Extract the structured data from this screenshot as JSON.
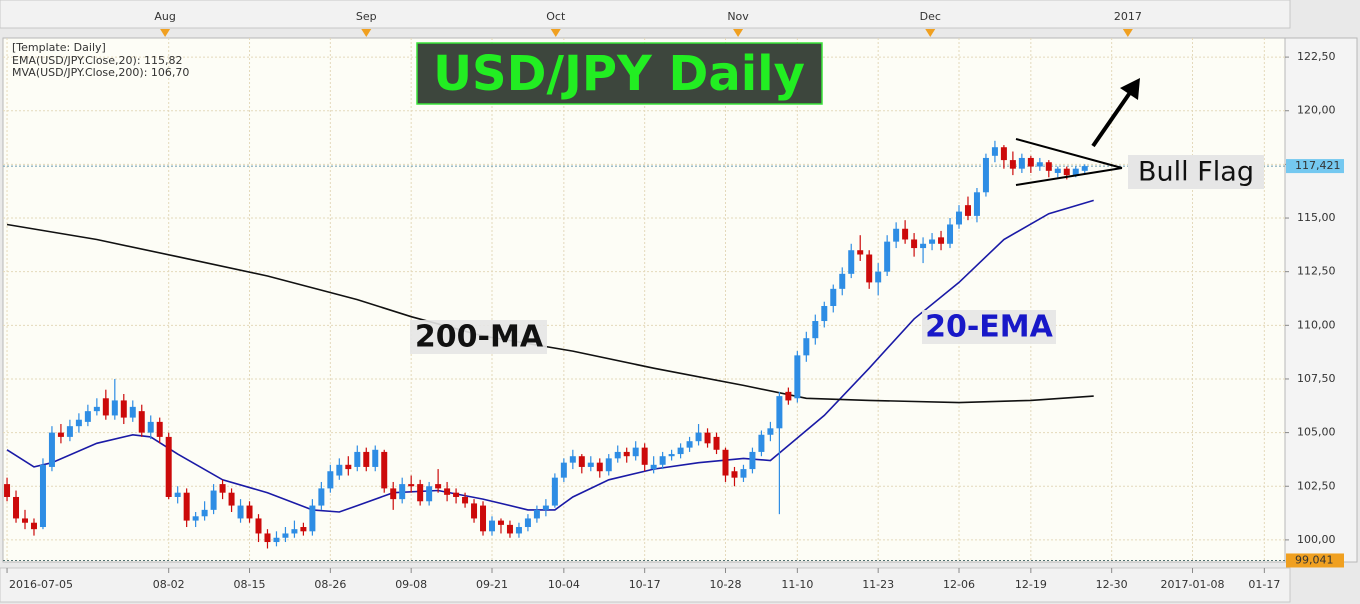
{
  "chart_data": {
    "type": "candlestick",
    "legend_title": "[Template: Daily]",
    "annotations": [
      "USD/JPY Daily",
      "200-MA",
      "20-EMA",
      "Bull Flag"
    ],
    "up_color": "#2e8de4",
    "down_color": "#cc0a0a",
    "ylim": [
      98.97,
      123.39
    ],
    "yticks": [
      {
        "value": 100,
        "label": "100,00"
      },
      {
        "value": 102.5,
        "label": "102,50"
      },
      {
        "value": 105,
        "label": "105,00"
      },
      {
        "value": 107.5,
        "label": "107,50"
      },
      {
        "value": 110,
        "label": "110,00"
      },
      {
        "value": 112.5,
        "label": "112,50"
      },
      {
        "value": 115,
        "label": "115,00"
      },
      {
        "value": 117.5,
        "label": "117,50"
      },
      {
        "value": 120,
        "label": "120,00"
      },
      {
        "value": 122.5,
        "label": "122,50"
      }
    ],
    "xlim": [
      -0.45,
      142.3
    ],
    "xticks": [
      {
        "value": 0,
        "label": "2016-07-05"
      },
      {
        "value": 18,
        "label": "08-02"
      },
      {
        "value": 27,
        "label": "08-15"
      },
      {
        "value": 36,
        "label": "08-26"
      },
      {
        "value": 45,
        "label": "09-08"
      },
      {
        "value": 54,
        "label": "09-21"
      },
      {
        "value": 62,
        "label": "10-04"
      },
      {
        "value": 71,
        "label": "10-17"
      },
      {
        "value": 80,
        "label": "10-28"
      },
      {
        "value": 88,
        "label": "11-10"
      },
      {
        "value": 97,
        "label": "11-23"
      },
      {
        "value": 106,
        "label": "12-06"
      },
      {
        "value": 114,
        "label": "12-19"
      },
      {
        "value": 123,
        "label": "12-30"
      },
      {
        "value": 132,
        "label": "2017-01-08"
      },
      {
        "value": 140,
        "label": "01-17"
      }
    ],
    "top_ticks": [
      {
        "value": 17.6,
        "label": "Aug"
      },
      {
        "value": 40,
        "label": "Sep"
      },
      {
        "value": 61.1,
        "label": "Oct"
      },
      {
        "value": 81.4,
        "label": "Nov"
      },
      {
        "value": 102.8,
        "label": "Dec"
      },
      {
        "value": 124.8,
        "label": "2017"
      }
    ],
    "grid": true,
    "last_price": {
      "value": 117.421,
      "label": "117,421",
      "color": "#74c8f0"
    },
    "low_price": {
      "value": 99.041,
      "label": "99,041",
      "color": "#f0a020"
    },
    "candles": [
      [
        102.6,
        102.9,
        101.8,
        102.0
      ],
      [
        102.0,
        102.3,
        100.8,
        101.0
      ],
      [
        101.0,
        101.4,
        100.5,
        100.8
      ],
      [
        100.8,
        101.0,
        100.2,
        100.5
      ],
      [
        100.6,
        103.8,
        100.5,
        103.5
      ],
      [
        103.4,
        105.3,
        103.2,
        105.0
      ],
      [
        105.0,
        105.4,
        104.5,
        104.8
      ],
      [
        104.8,
        105.6,
        104.6,
        105.3
      ],
      [
        105.3,
        105.9,
        105.0,
        105.6
      ],
      [
        105.5,
        106.3,
        105.3,
        106.0
      ],
      [
        106.0,
        106.6,
        105.8,
        106.2
      ],
      [
        106.6,
        107.0,
        105.6,
        105.8
      ],
      [
        105.8,
        107.5,
        105.6,
        106.5
      ],
      [
        106.5,
        106.8,
        105.4,
        105.7
      ],
      [
        105.7,
        106.5,
        105.5,
        106.2
      ],
      [
        106.0,
        106.3,
        104.8,
        105.0
      ],
      [
        105.0,
        105.8,
        104.7,
        105.5
      ],
      [
        105.5,
        105.7,
        104.5,
        104.8
      ],
      [
        104.8,
        105.0,
        101.9,
        102.0
      ],
      [
        102.0,
        102.5,
        101.7,
        102.2
      ],
      [
        102.2,
        102.4,
        100.6,
        100.9
      ],
      [
        100.9,
        101.3,
        100.6,
        101.1
      ],
      [
        101.1,
        101.8,
        100.9,
        101.4
      ],
      [
        101.4,
        102.6,
        101.2,
        102.3
      ],
      [
        102.6,
        102.8,
        101.9,
        102.2
      ],
      [
        102.2,
        102.4,
        101.3,
        101.6
      ],
      [
        101.0,
        101.9,
        100.8,
        101.6
      ],
      [
        101.6,
        101.8,
        100.8,
        101.0
      ],
      [
        101.0,
        101.2,
        99.9,
        100.3
      ],
      [
        100.3,
        100.5,
        99.6,
        99.9
      ],
      [
        99.9,
        100.4,
        99.7,
        100.1
      ],
      [
        100.1,
        100.6,
        99.9,
        100.3
      ],
      [
        100.3,
        100.9,
        100.1,
        100.5
      ],
      [
        100.6,
        100.8,
        100.2,
        100.4
      ],
      [
        100.4,
        101.9,
        100.2,
        101.6
      ],
      [
        101.6,
        102.7,
        101.4,
        102.4
      ],
      [
        102.4,
        103.5,
        102.2,
        103.2
      ],
      [
        103.0,
        103.8,
        102.8,
        103.5
      ],
      [
        103.5,
        103.9,
        103.0,
        103.3
      ],
      [
        103.4,
        104.4,
        103.2,
        104.1
      ],
      [
        104.1,
        104.3,
        103.2,
        103.4
      ],
      [
        103.4,
        104.4,
        103.2,
        104.2
      ],
      [
        104.1,
        104.2,
        102.2,
        102.4
      ],
      [
        102.4,
        102.7,
        101.4,
        101.9
      ],
      [
        101.9,
        102.9,
        101.7,
        102.6
      ],
      [
        102.6,
        103.0,
        102.2,
        102.5
      ],
      [
        102.6,
        102.8,
        101.6,
        101.8
      ],
      [
        101.8,
        102.7,
        101.6,
        102.5
      ],
      [
        102.6,
        103.3,
        102.2,
        102.4
      ],
      [
        102.4,
        102.7,
        101.8,
        102.1
      ],
      [
        102.2,
        102.4,
        101.7,
        102.0
      ],
      [
        102.0,
        102.2,
        101.5,
        101.7
      ],
      [
        101.7,
        101.9,
        100.8,
        101.0
      ],
      [
        101.6,
        101.8,
        100.2,
        100.4
      ],
      [
        100.4,
        101.1,
        100.2,
        100.9
      ],
      [
        100.9,
        101.0,
        100.3,
        100.7
      ],
      [
        100.7,
        100.9,
        100.1,
        100.3
      ],
      [
        100.3,
        100.8,
        100.1,
        100.6
      ],
      [
        100.6,
        101.2,
        100.4,
        101.0
      ],
      [
        101.0,
        101.6,
        100.8,
        101.4
      ],
      [
        101.4,
        101.9,
        101.1,
        101.6
      ],
      [
        101.6,
        103.1,
        101.5,
        102.9
      ],
      [
        102.9,
        103.8,
        102.7,
        103.6
      ],
      [
        103.6,
        104.2,
        103.3,
        103.9
      ],
      [
        103.9,
        104.0,
        103.1,
        103.4
      ],
      [
        103.4,
        103.9,
        103.2,
        103.6
      ],
      [
        103.6,
        103.8,
        102.9,
        103.2
      ],
      [
        103.2,
        104.0,
        103.0,
        103.8
      ],
      [
        103.8,
        104.4,
        103.6,
        104.1
      ],
      [
        104.1,
        104.3,
        103.6,
        103.9
      ],
      [
        103.9,
        104.6,
        103.7,
        104.3
      ],
      [
        104.3,
        104.5,
        103.2,
        103.5
      ],
      [
        103.3,
        103.9,
        103.1,
        103.5
      ],
      [
        103.5,
        104.1,
        103.3,
        103.9
      ],
      [
        103.9,
        104.2,
        103.7,
        104.0
      ],
      [
        104.0,
        104.5,
        103.8,
        104.3
      ],
      [
        104.3,
        104.8,
        104.1,
        104.6
      ],
      [
        104.6,
        105.4,
        104.4,
        105.0
      ],
      [
        105.0,
        105.2,
        104.3,
        104.5
      ],
      [
        104.8,
        105.0,
        104.0,
        104.2
      ],
      [
        104.2,
        104.3,
        102.7,
        103.0
      ],
      [
        103.2,
        103.4,
        102.5,
        102.9
      ],
      [
        102.9,
        103.5,
        102.7,
        103.3
      ],
      [
        103.3,
        104.3,
        103.1,
        104.1
      ],
      [
        104.1,
        105.1,
        103.9,
        104.9
      ],
      [
        104.9,
        105.5,
        104.6,
        105.2
      ],
      [
        105.2,
        106.9,
        101.2,
        106.7
      ],
      [
        106.9,
        107.1,
        106.3,
        106.5
      ],
      [
        106.6,
        108.8,
        106.4,
        108.6
      ],
      [
        108.6,
        109.7,
        108.3,
        109.4
      ],
      [
        109.4,
        110.5,
        109.1,
        110.2
      ],
      [
        110.2,
        111.1,
        109.9,
        110.9
      ],
      [
        110.9,
        111.9,
        110.6,
        111.7
      ],
      [
        111.7,
        112.7,
        111.4,
        112.4
      ],
      [
        112.4,
        113.8,
        112.2,
        113.5
      ],
      [
        113.5,
        114.2,
        113.0,
        113.3
      ],
      [
        113.3,
        113.5,
        111.7,
        112.0
      ],
      [
        112.0,
        112.9,
        111.4,
        112.5
      ],
      [
        112.5,
        114.2,
        112.3,
        113.9
      ],
      [
        113.9,
        114.8,
        113.6,
        114.5
      ],
      [
        114.5,
        114.9,
        113.8,
        114.0
      ],
      [
        114.0,
        114.3,
        113.2,
        113.6
      ],
      [
        113.6,
        114.1,
        112.9,
        113.8
      ],
      [
        113.8,
        114.3,
        113.5,
        114.0
      ],
      [
        114.1,
        114.4,
        113.5,
        113.8
      ],
      [
        113.8,
        115.0,
        113.6,
        114.7
      ],
      [
        114.7,
        115.6,
        114.5,
        115.3
      ],
      [
        115.6,
        116.0,
        114.9,
        115.1
      ],
      [
        115.1,
        116.4,
        114.8,
        116.2
      ],
      [
        116.2,
        118.0,
        116.0,
        117.8
      ],
      [
        117.9,
        118.6,
        117.6,
        118.3
      ],
      [
        118.3,
        118.4,
        117.3,
        117.7
      ],
      [
        117.7,
        118.1,
        117.0,
        117.3
      ],
      [
        117.3,
        118.0,
        117.1,
        117.8
      ],
      [
        117.8,
        117.9,
        117.1,
        117.4
      ],
      [
        117.4,
        117.8,
        117.2,
        117.6
      ],
      [
        117.6,
        117.7,
        116.9,
        117.2
      ],
      [
        117.1,
        117.4,
        116.9,
        117.3
      ],
      [
        117.3,
        117.4,
        116.8,
        117.0
      ],
      [
        117.0,
        117.4,
        116.9,
        117.3
      ],
      [
        117.2,
        117.5,
        117.1,
        117.42
      ]
    ],
    "series": [
      {
        "name": "EMA(USD/JPY.Close,20): 115,82",
        "color": "#1a1aa6",
        "x": [
          0,
          3,
          5,
          10,
          14,
          16,
          19,
          24,
          29,
          34,
          37,
          39,
          43,
          48,
          53,
          58,
          61,
          63,
          67,
          72,
          77,
          82,
          85,
          87,
          91,
          96,
          101,
          106,
          111,
          116,
          121
        ],
        "values": [
          104.2,
          103.4,
          103.6,
          104.5,
          104.9,
          104.8,
          104.0,
          102.8,
          102.2,
          101.4,
          101.3,
          101.6,
          102.2,
          102.3,
          101.9,
          101.4,
          101.4,
          102.0,
          102.8,
          103.3,
          103.6,
          103.8,
          103.7,
          104.4,
          105.8,
          108.0,
          110.3,
          112.0,
          114.0,
          115.2,
          115.82
        ]
      },
      {
        "name": "MVA(USD/JPY.Close,200): 106,70",
        "color": "#111111",
        "x": [
          0,
          10,
          19,
          29,
          39,
          45,
          53,
          63,
          72,
          82,
          89,
          96,
          106,
          114,
          121
        ],
        "values": [
          114.7,
          114.0,
          113.2,
          112.3,
          111.2,
          110.4,
          109.5,
          108.8,
          108.0,
          107.2,
          106.6,
          106.5,
          106.4,
          106.5,
          106.7
        ]
      }
    ]
  }
}
